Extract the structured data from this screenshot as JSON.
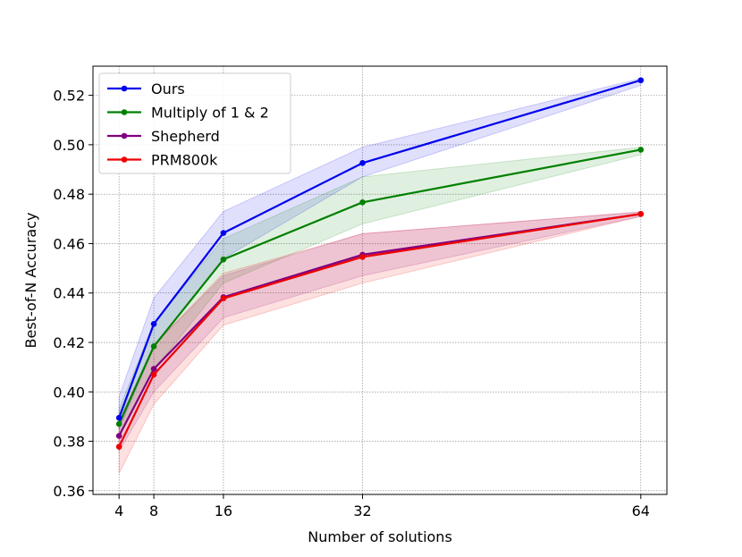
{
  "chart_data": {
    "type": "line",
    "title": "",
    "xlabel": "Number of solutions",
    "ylabel": "Best-of-N Accuracy",
    "x": [
      4,
      8,
      16,
      32,
      64
    ],
    "xticks": [
      "4",
      "8",
      "16",
      "32",
      "64"
    ],
    "xlim": [
      1,
      67
    ],
    "ylim": [
      0.3585,
      0.5318
    ],
    "yticks": [
      "0.36",
      "0.38",
      "0.40",
      "0.42",
      "0.44",
      "0.46",
      "0.48",
      "0.50",
      "0.52"
    ],
    "grid": true,
    "legend_position": "top-left",
    "series": [
      {
        "name": "Ours",
        "color": "#0000ee",
        "values": [
          0.3895,
          0.4275,
          0.4643,
          0.4926,
          0.5261
        ],
        "lower": [
          0.385,
          0.418,
          0.454,
          0.487,
          0.524
        ],
        "upper": [
          0.398,
          0.438,
          0.473,
          0.499,
          0.5268
        ]
      },
      {
        "name": "Multiply of 1 & 2",
        "color": "#008000",
        "values": [
          0.387,
          0.4184,
          0.4536,
          0.4767,
          0.498
        ],
        "lower": [
          0.382,
          0.409,
          0.444,
          0.468,
          0.496
        ],
        "upper": [
          0.393,
          0.428,
          0.462,
          0.487,
          0.499
        ]
      },
      {
        "name": "Shepherd",
        "color": "#800080",
        "values": [
          0.3822,
          0.4093,
          0.4383,
          0.4555,
          0.472
        ],
        "lower": [
          0.376,
          0.4,
          0.43,
          0.447,
          0.471
        ],
        "upper": [
          0.388,
          0.419,
          0.447,
          0.464,
          0.4728
        ]
      },
      {
        "name": "PRM800k",
        "color": "#ee0000",
        "values": [
          0.3778,
          0.407,
          0.4378,
          0.4546,
          0.472
        ],
        "lower": [
          0.367,
          0.395,
          0.427,
          0.444,
          0.471
        ],
        "upper": [
          0.388,
          0.419,
          0.448,
          0.464,
          0.4728
        ]
      }
    ]
  }
}
